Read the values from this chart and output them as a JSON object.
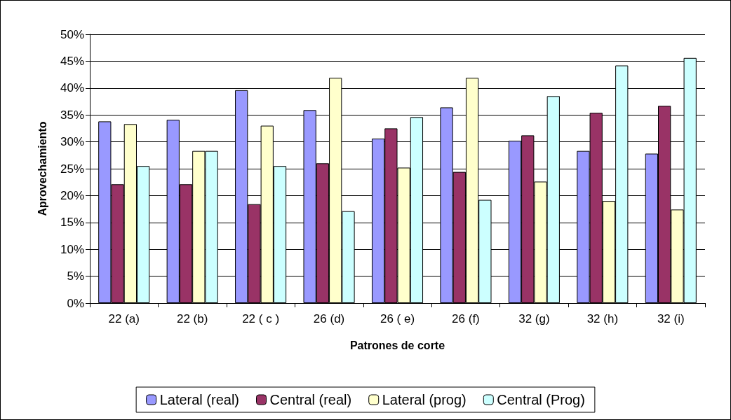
{
  "chart_data": {
    "type": "bar",
    "xlabel": "Patrones de corte",
    "ylabel": "Aprovechamiento",
    "categories": [
      "22 (a)",
      "22 (b)",
      "22 ( c )",
      "26 (d)",
      "26 ( e)",
      "26 (f)",
      "32 (g)",
      "32 (h)",
      "32 (i)"
    ],
    "series": [
      {
        "name": "Lateral (real)",
        "color": "#9999ff",
        "values": [
          33.8,
          34.1,
          39.6,
          35.9,
          30.6,
          36.4,
          30.2,
          28.3,
          27.8
        ]
      },
      {
        "name": "Central (real)",
        "color": "#993366",
        "values": [
          22.1,
          22.1,
          18.4,
          26.0,
          32.5,
          24.4,
          31.2,
          35.4,
          36.7
        ]
      },
      {
        "name": "Lateral (prog)",
        "color": "#ffffcc",
        "values": [
          33.3,
          28.3,
          33.0,
          41.9,
          25.2,
          41.9,
          22.6,
          19.0,
          17.4
        ]
      },
      {
        "name": "Central (Prog)",
        "color": "#ccffff",
        "values": [
          25.5,
          28.3,
          25.5,
          17.1,
          34.6,
          19.2,
          38.5,
          44.2,
          45.6
        ]
      }
    ],
    "ylim": [
      0,
      50
    ],
    "yticks": [
      {
        "value": 0,
        "label": "0%"
      },
      {
        "value": 5,
        "label": "5%"
      },
      {
        "value": 10,
        "label": "10%"
      },
      {
        "value": 15,
        "label": "15%"
      },
      {
        "value": 20,
        "label": "20%"
      },
      {
        "value": 25,
        "label": "25%"
      },
      {
        "value": 30,
        "label": "30%"
      },
      {
        "value": 35,
        "label": "35%"
      },
      {
        "value": 40,
        "label": "40%"
      },
      {
        "value": 45,
        "label": "45%"
      },
      {
        "value": 50,
        "label": "50%"
      }
    ],
    "grid": "y",
    "legend": "bottom"
  }
}
